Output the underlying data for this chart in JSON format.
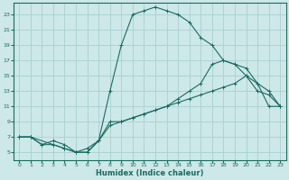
{
  "xlabel": "Humidex (Indice chaleur)",
  "background_color": "#cce8e8",
  "grid_color": "#aacfcf",
  "line_color": "#1a6b60",
  "xlim": [
    -0.5,
    23.5
  ],
  "ylim": [
    4,
    24.5
  ],
  "xticks": [
    0,
    1,
    2,
    3,
    4,
    5,
    6,
    7,
    8,
    9,
    10,
    11,
    12,
    13,
    14,
    15,
    16,
    17,
    18,
    19,
    20,
    21,
    22,
    23
  ],
  "yticks": [
    5,
    7,
    9,
    11,
    13,
    15,
    17,
    19,
    21,
    23
  ],
  "line1_x": [
    0,
    1,
    2,
    3,
    4,
    5,
    6,
    7,
    8,
    9,
    10,
    11,
    12,
    13,
    14,
    15,
    16,
    17,
    18,
    19,
    20,
    21,
    22,
    23
  ],
  "line1_y": [
    7,
    7,
    6,
    6.5,
    6,
    5,
    5,
    6.5,
    8.5,
    9,
    9.5,
    10,
    10.5,
    11,
    11.5,
    12,
    12.5,
    13,
    13.5,
    14,
    15,
    14,
    11,
    11
  ],
  "line2_x": [
    0,
    1,
    2,
    3,
    4,
    5,
    6,
    7,
    8,
    9,
    10,
    11,
    12,
    13,
    14,
    15,
    16,
    17,
    18,
    19,
    20,
    21,
    22,
    23
  ],
  "line2_y": [
    7,
    7,
    6,
    6,
    5.5,
    5,
    5.5,
    6.5,
    9,
    9,
    9.5,
    10,
    10.5,
    11,
    12,
    13,
    14,
    16.5,
    17,
    16.5,
    15,
    13,
    12.5,
    11
  ],
  "line3_x": [
    0,
    1,
    3,
    4,
    5,
    6,
    7,
    8,
    9,
    10,
    11,
    12,
    13,
    14,
    15,
    16,
    17,
    18,
    19,
    20,
    21,
    22,
    23
  ],
  "line3_y": [
    7,
    7,
    6,
    5.5,
    5,
    5,
    6.5,
    13,
    19,
    23,
    23.5,
    24,
    23.5,
    23,
    22,
    20,
    19,
    17,
    16.5,
    16,
    14,
    13,
    11
  ]
}
